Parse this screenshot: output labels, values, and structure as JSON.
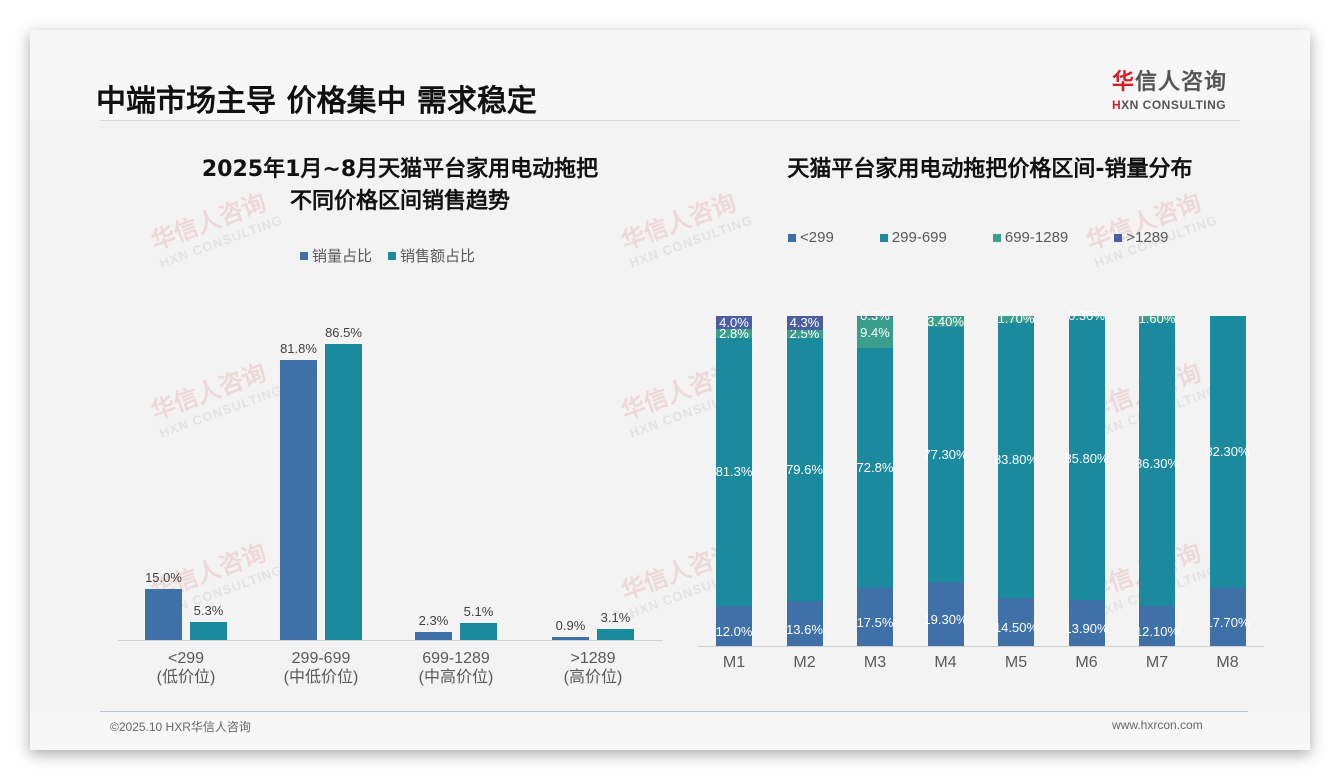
{
  "header": {
    "title": "中端市场主导 价格集中 需求稳定",
    "logo_cn_red": "华",
    "logo_cn_rest": "信人咨询",
    "logo_en_red": "H",
    "logo_en_rest": "XN CONSULTING"
  },
  "watermark": {
    "cn": "华信人咨询",
    "en": "HXN CONSULTING"
  },
  "left_chart": {
    "title_line1": "2025年1月~8月天猫平台家用电动拖把",
    "title_line2": "不同价格区间销售趋势",
    "legend": [
      {
        "label": "销量占比",
        "color": "#3f71a8"
      },
      {
        "label": "销售额占比",
        "color": "#1b8a9e"
      }
    ],
    "categories": [
      {
        "line1": "<299",
        "line2": "(低价位)"
      },
      {
        "line1": "299-699",
        "line2": "(中低价位)"
      },
      {
        "line1": "699-1289",
        "line2": "(中高价位)"
      },
      {
        "line1": ">1289",
        "line2": "(高价位)"
      }
    ],
    "labels": {
      "volume": [
        "15.0%",
        "81.8%",
        "2.3%",
        "0.9%"
      ],
      "revenue": [
        "5.3%",
        "86.5%",
        "5.1%",
        "3.1%"
      ]
    }
  },
  "right_chart": {
    "title": "天猫平台家用电动拖把价格区间-销量分布",
    "legend": [
      {
        "label": "<299",
        "color": "#3f71a8"
      },
      {
        "label": "299-699",
        "color": "#1b8a9e"
      },
      {
        "label": "699-1289",
        "color": "#3a9e8a"
      },
      {
        "label": ">1289",
        "color": "#4a5fa0"
      }
    ],
    "months": [
      "M1",
      "M2",
      "M3",
      "M4",
      "M5",
      "M6",
      "M7",
      "M8"
    ],
    "labels": {
      "lt299": [
        "12.0%",
        "13.6%",
        "17.5%",
        "19.30%",
        "14.50%",
        "13.90%",
        "12.10%",
        "17.70%"
      ],
      "r299_699": [
        "81.3%",
        "79.6%",
        "72.8%",
        "77.30%",
        "83.80%",
        "85.80%",
        "86.30%",
        "82.30%"
      ],
      "r699_1289": [
        "2.8%",
        "2.5%",
        "9.4%",
        "3.40%",
        "1.70%",
        "0.30%",
        "1.60%",
        ""
      ],
      "gt1289": [
        "4.0%",
        "4.3%",
        "0.3%",
        "",
        "",
        "",
        "",
        ""
      ]
    }
  },
  "chart_data": [
    {
      "type": "bar",
      "title": "2025年1月~8月天猫平台家用电动拖把不同价格区间销售趋势",
      "categories": [
        "<299 (低价位)",
        "299-699 (中低价位)",
        "699-1289 (中高价位)",
        ">1289 (高价位)"
      ],
      "series": [
        {
          "name": "销量占比",
          "values": [
            15.0,
            81.8,
            2.3,
            0.9
          ]
        },
        {
          "name": "销售额占比",
          "values": [
            5.3,
            86.5,
            5.1,
            3.1
          ]
        }
      ],
      "xlabel": "",
      "ylabel": "%",
      "ylim": [
        0,
        100
      ],
      "legend_position": "top",
      "grid": false
    },
    {
      "type": "bar",
      "stacked": true,
      "title": "天猫平台家用电动拖把价格区间-销量分布",
      "categories": [
        "M1",
        "M2",
        "M3",
        "M4",
        "M5",
        "M6",
        "M7",
        "M8"
      ],
      "series": [
        {
          "name": "<299",
          "values": [
            12.0,
            13.6,
            17.5,
            19.3,
            14.5,
            13.9,
            12.1,
            17.7
          ]
        },
        {
          "name": "299-699",
          "values": [
            81.3,
            79.6,
            72.8,
            77.3,
            83.8,
            85.8,
            86.3,
            82.3
          ]
        },
        {
          "name": "699-1289",
          "values": [
            2.8,
            2.5,
            9.4,
            3.4,
            1.7,
            0.3,
            1.6,
            0
          ]
        },
        {
          "name": ">1289",
          "values": [
            4.0,
            4.3,
            0.3,
            0,
            0,
            0,
            0,
            0
          ]
        }
      ],
      "xlabel": "",
      "ylabel": "%",
      "ylim": [
        0,
        100
      ],
      "legend_position": "top",
      "grid": false
    }
  ],
  "footer": {
    "copyright": "©2025.10 HXR华信人咨询",
    "website": "www.hxrcon.com"
  }
}
